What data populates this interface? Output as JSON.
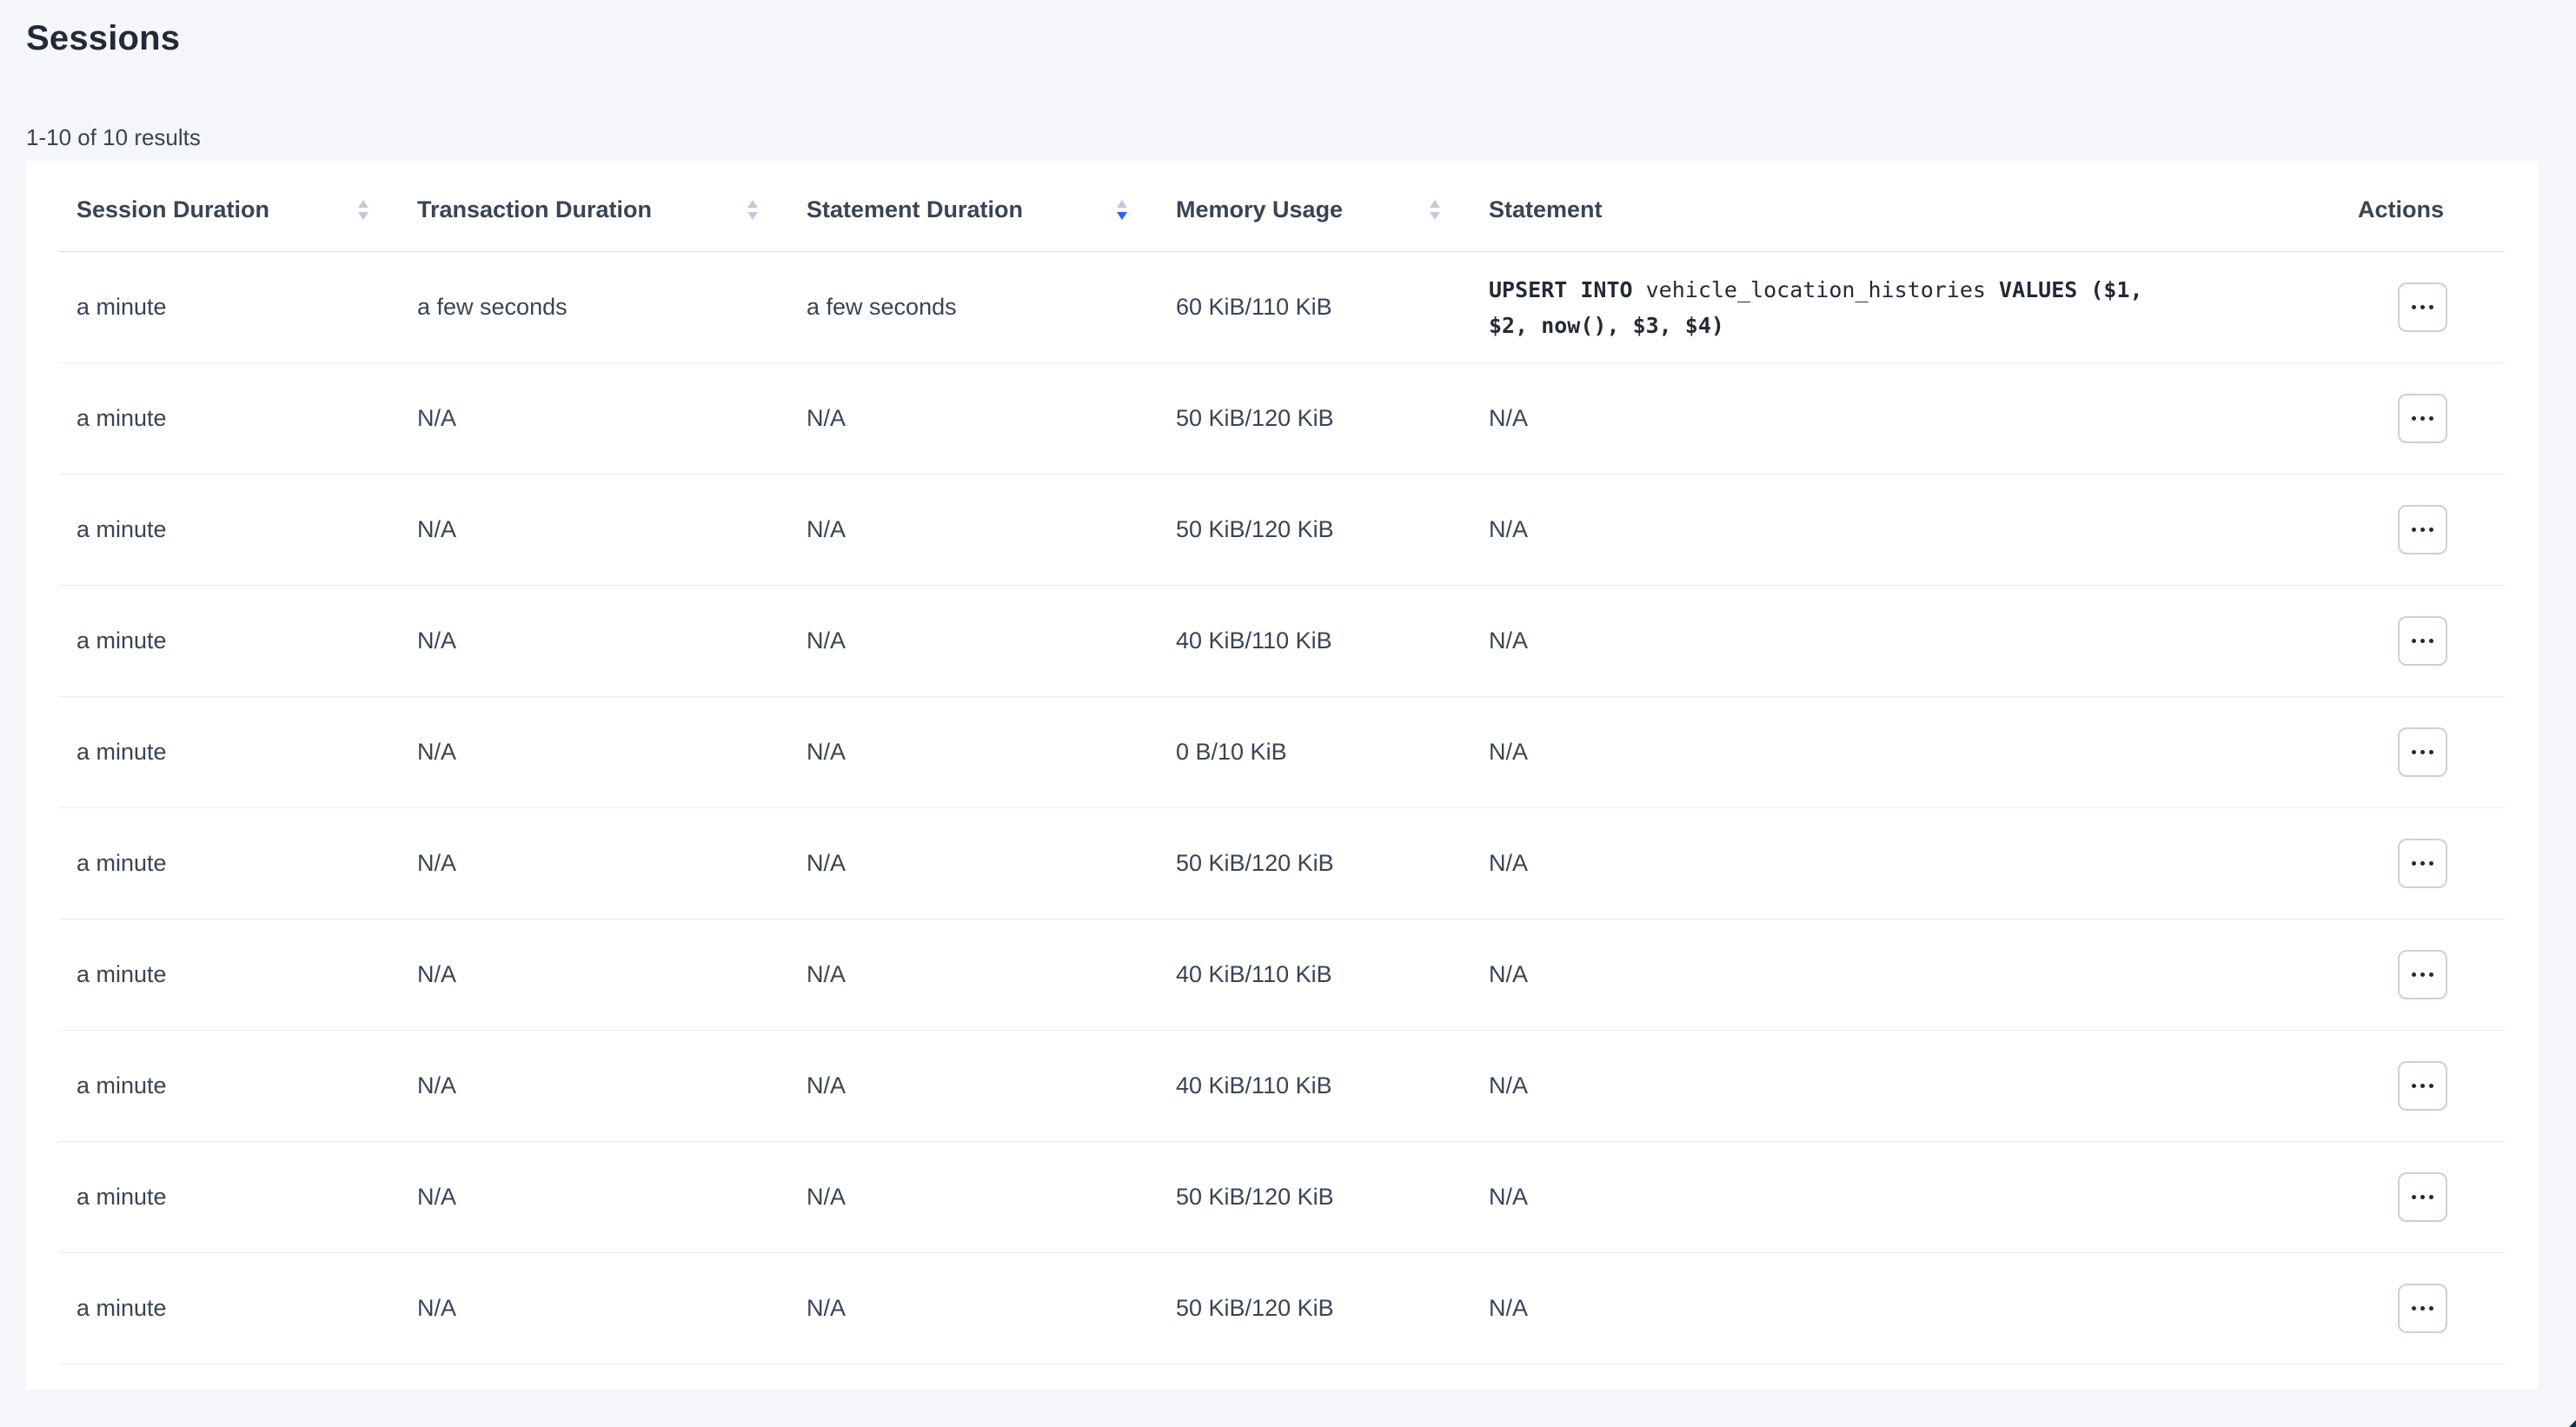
{
  "page": {
    "title": "Sessions",
    "results_summary": "1-10 of 10 results"
  },
  "table": {
    "columns": [
      {
        "id": "session_duration",
        "label": "Session Duration",
        "sortable": true,
        "sort_state": "none"
      },
      {
        "id": "transaction_duration",
        "label": "Transaction Duration",
        "sortable": true,
        "sort_state": "none"
      },
      {
        "id": "statement_duration",
        "label": "Statement Duration",
        "sortable": true,
        "sort_state": "desc"
      },
      {
        "id": "memory_usage",
        "label": "Memory Usage",
        "sortable": true,
        "sort_state": "none"
      },
      {
        "id": "statement",
        "label": "Statement",
        "sortable": false,
        "sort_state": "none"
      },
      {
        "id": "actions",
        "label": "Actions",
        "sortable": false,
        "sort_state": "none"
      }
    ],
    "row_action_icon": "ellipsis-icon",
    "rows": [
      {
        "session_duration": "a minute",
        "transaction_duration": "a few seconds",
        "statement_duration": "a few seconds",
        "memory_usage": "60 KiB/110 KiB",
        "statement_text": "UPSERT INTO vehicle_location_histories VALUES ($1, $2, now(), $3, $4)",
        "statement_lines": [
          [
            {
              "t": "UPSERT INTO ",
              "bold": true
            },
            {
              "t": "vehicle_location_histories",
              "bold": false
            },
            {
              "t": " VALUES ($1,",
              "bold": true
            }
          ],
          [
            {
              "t": "$2, now(), $3, $4)",
              "bold": true
            }
          ]
        ]
      },
      {
        "session_duration": "a minute",
        "transaction_duration": "N/A",
        "statement_duration": "N/A",
        "memory_usage": "50 KiB/120 KiB",
        "statement_text": "N/A"
      },
      {
        "session_duration": "a minute",
        "transaction_duration": "N/A",
        "statement_duration": "N/A",
        "memory_usage": "50 KiB/120 KiB",
        "statement_text": "N/A"
      },
      {
        "session_duration": "a minute",
        "transaction_duration": "N/A",
        "statement_duration": "N/A",
        "memory_usage": "40 KiB/110 KiB",
        "statement_text": "N/A"
      },
      {
        "session_duration": "a minute",
        "transaction_duration": "N/A",
        "statement_duration": "N/A",
        "memory_usage": "0 B/10 KiB",
        "statement_text": "N/A"
      },
      {
        "session_duration": "a minute",
        "transaction_duration": "N/A",
        "statement_duration": "N/A",
        "memory_usage": "50 KiB/120 KiB",
        "statement_text": "N/A"
      },
      {
        "session_duration": "a minute",
        "transaction_duration": "N/A",
        "statement_duration": "N/A",
        "memory_usage": "40 KiB/110 KiB",
        "statement_text": "N/A"
      },
      {
        "session_duration": "a minute",
        "transaction_duration": "N/A",
        "statement_duration": "N/A",
        "memory_usage": "40 KiB/110 KiB",
        "statement_text": "N/A"
      },
      {
        "session_duration": "a minute",
        "transaction_duration": "N/A",
        "statement_duration": "N/A",
        "memory_usage": "50 KiB/120 KiB",
        "statement_text": "N/A"
      },
      {
        "session_duration": "a minute",
        "transaction_duration": "N/A",
        "statement_duration": "N/A",
        "memory_usage": "50 KiB/120 KiB",
        "statement_text": "N/A"
      }
    ]
  },
  "colors": {
    "page_bg": "#f4f6fa",
    "card_bg": "#ffffff",
    "text_primary": "#242a35",
    "text_secondary": "#394455",
    "row_border": "#e7ebf1",
    "header_border": "#d6dce8",
    "sort_inactive": "#c3c9da",
    "sort_active": "#2962ff",
    "action_border": "#c8cfe2",
    "corner_notch": "#16324a"
  }
}
